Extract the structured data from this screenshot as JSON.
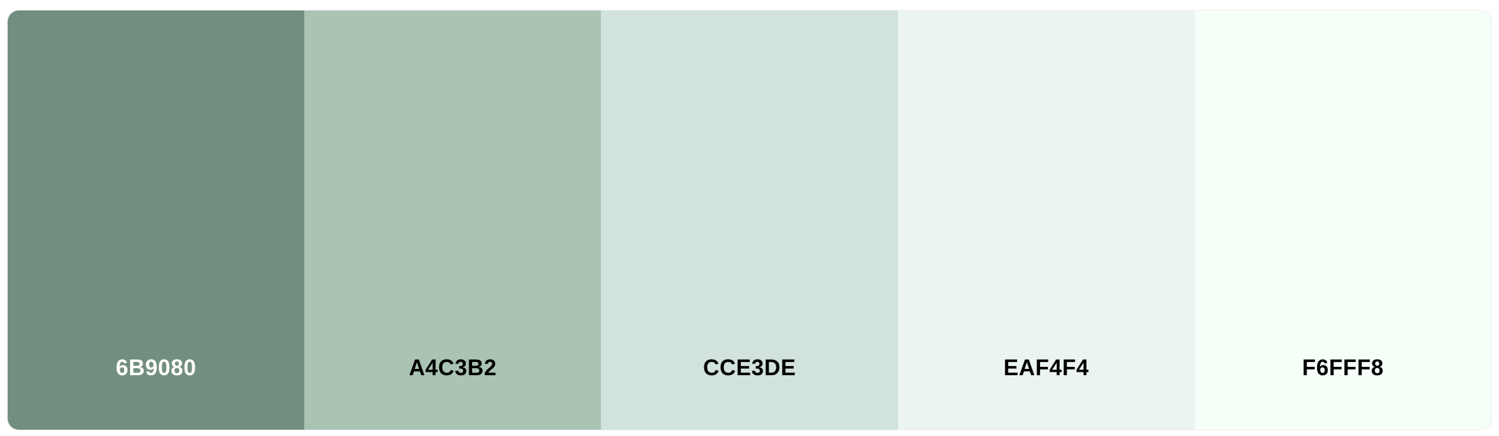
{
  "palette": {
    "swatches": [
      {
        "hex": "6B9080",
        "color": "#728E7E",
        "text_color": "#FFFFFF"
      },
      {
        "hex": "A4C3B2",
        "color": "#ABC3B3",
        "text_color": "#000000"
      },
      {
        "hex": "CCE3DE",
        "color": "#D2E2DE",
        "text_color": "#000000"
      },
      {
        "hex": "EAF4F4",
        "color": "#ECF4F3",
        "text_color": "#000000"
      },
      {
        "hex": "F6FFF8",
        "color": "#F6FEF8",
        "text_color": "#000000"
      }
    ]
  }
}
